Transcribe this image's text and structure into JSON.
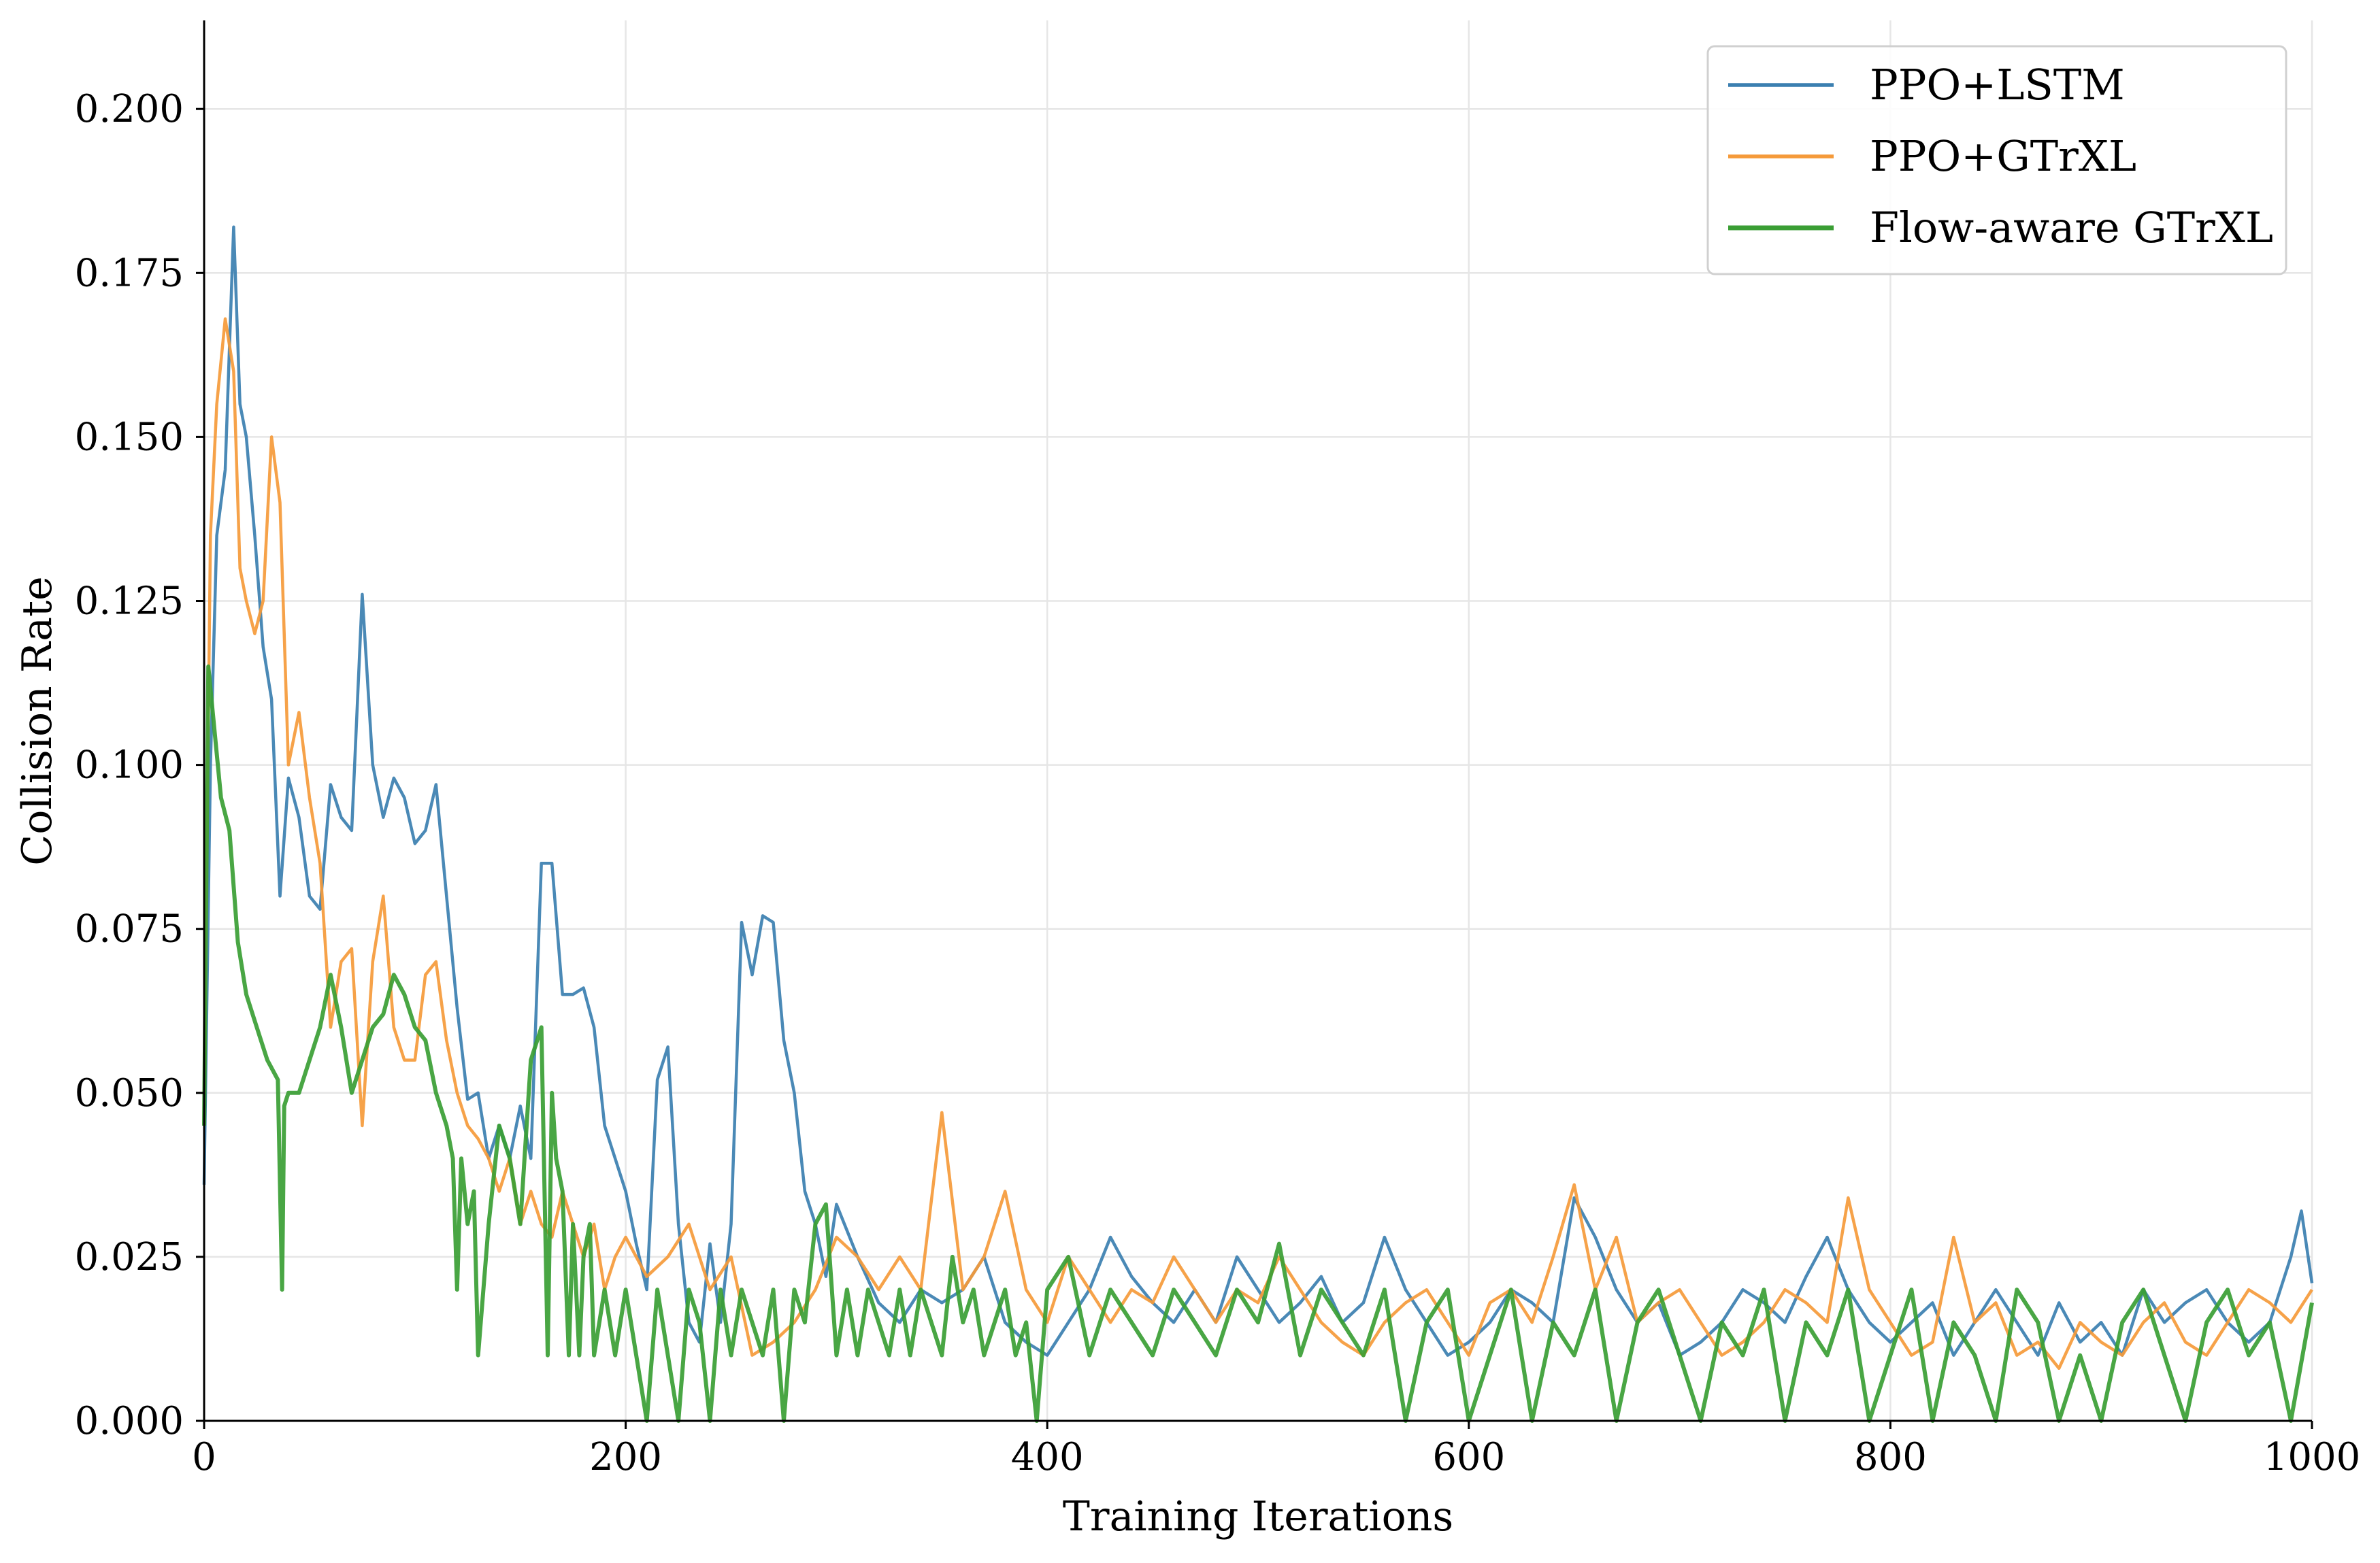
{
  "chart_data": {
    "type": "line",
    "title": "",
    "xlabel": "Training Iterations",
    "ylabel": "Collision Rate",
    "xlim": [
      0,
      1000
    ],
    "ylim": [
      0,
      0.2135
    ],
    "xticks": [
      0,
      200,
      400,
      600,
      800,
      1000
    ],
    "xtick_labels": [
      "0",
      "200",
      "400",
      "600",
      "800",
      "1000"
    ],
    "yticks": [
      0,
      0.025,
      0.05,
      0.075,
      0.1,
      0.125,
      0.15,
      0.175,
      0.2
    ],
    "ytick_labels": [
      "0.000",
      "0.025",
      "0.050",
      "0.075",
      "0.100",
      "0.125",
      "0.150",
      "0.175",
      "0.200"
    ],
    "grid": true,
    "legend_position": "top-right",
    "series": [
      {
        "name": "PPO+LSTM",
        "color": "#3b7fb0",
        "x": [
          0,
          3,
          6,
          10,
          14,
          17,
          20,
          24,
          28,
          32,
          36,
          40,
          45,
          50,
          55,
          60,
          65,
          70,
          75,
          80,
          85,
          90,
          95,
          100,
          105,
          110,
          115,
          120,
          125,
          130,
          135,
          140,
          145,
          150,
          155,
          160,
          165,
          170,
          175,
          180,
          185,
          190,
          195,
          200,
          205,
          210,
          215,
          220,
          225,
          230,
          235,
          240,
          245,
          250,
          255,
          260,
          265,
          270,
          275,
          280,
          285,
          290,
          295,
          300,
          310,
          320,
          330,
          340,
          350,
          360,
          370,
          380,
          390,
          400,
          410,
          420,
          430,
          440,
          450,
          460,
          470,
          480,
          490,
          500,
          510,
          520,
          530,
          540,
          550,
          560,
          570,
          580,
          590,
          600,
          610,
          620,
          630,
          640,
          650,
          660,
          670,
          680,
          690,
          700,
          710,
          720,
          730,
          740,
          750,
          760,
          770,
          780,
          790,
          800,
          810,
          820,
          830,
          840,
          850,
          860,
          870,
          880,
          890,
          900,
          910,
          920,
          930,
          940,
          950,
          960,
          970,
          980,
          990,
          995,
          1000
        ],
        "values": [
          0.036,
          0.1,
          0.135,
          0.145,
          0.182,
          0.155,
          0.15,
          0.135,
          0.118,
          0.11,
          0.08,
          0.098,
          0.092,
          0.08,
          0.078,
          0.097,
          0.092,
          0.09,
          0.126,
          0.1,
          0.092,
          0.098,
          0.095,
          0.088,
          0.09,
          0.097,
          0.08,
          0.063,
          0.049,
          0.05,
          0.04,
          0.045,
          0.04,
          0.048,
          0.04,
          0.085,
          0.085,
          0.065,
          0.065,
          0.066,
          0.06,
          0.045,
          0.04,
          0.035,
          0.027,
          0.02,
          0.052,
          0.057,
          0.03,
          0.015,
          0.012,
          0.027,
          0.015,
          0.03,
          0.076,
          0.068,
          0.077,
          0.076,
          0.058,
          0.05,
          0.035,
          0.03,
          0.022,
          0.033,
          0.025,
          0.018,
          0.015,
          0.02,
          0.018,
          0.02,
          0.025,
          0.015,
          0.012,
          0.01,
          0.015,
          0.02,
          0.028,
          0.022,
          0.018,
          0.015,
          0.02,
          0.015,
          0.025,
          0.02,
          0.015,
          0.018,
          0.022,
          0.015,
          0.018,
          0.028,
          0.02,
          0.015,
          0.01,
          0.012,
          0.015,
          0.02,
          0.018,
          0.015,
          0.034,
          0.028,
          0.02,
          0.015,
          0.018,
          0.01,
          0.012,
          0.015,
          0.02,
          0.018,
          0.015,
          0.022,
          0.028,
          0.02,
          0.015,
          0.012,
          0.015,
          0.018,
          0.01,
          0.015,
          0.02,
          0.015,
          0.01,
          0.018,
          0.012,
          0.015,
          0.01,
          0.02,
          0.015,
          0.018,
          0.02,
          0.015,
          0.012,
          0.015,
          0.025,
          0.032,
          0.021
        ]
      },
      {
        "name": "PPO+GTrXL",
        "color": "#f59a3a",
        "x": [
          0,
          3,
          6,
          10,
          14,
          17,
          20,
          24,
          28,
          32,
          36,
          40,
          45,
          50,
          55,
          60,
          65,
          70,
          75,
          80,
          85,
          90,
          95,
          100,
          105,
          110,
          115,
          120,
          125,
          130,
          135,
          140,
          145,
          150,
          155,
          160,
          165,
          170,
          175,
          180,
          185,
          190,
          195,
          200,
          210,
          220,
          230,
          240,
          250,
          260,
          270,
          280,
          290,
          300,
          310,
          320,
          330,
          340,
          350,
          360,
          370,
          380,
          390,
          400,
          410,
          420,
          430,
          440,
          450,
          460,
          470,
          480,
          490,
          500,
          510,
          520,
          530,
          540,
          550,
          560,
          570,
          580,
          590,
          600,
          610,
          620,
          630,
          640,
          650,
          660,
          670,
          680,
          690,
          700,
          710,
          720,
          730,
          740,
          750,
          760,
          770,
          780,
          790,
          800,
          810,
          820,
          830,
          840,
          850,
          860,
          870,
          880,
          890,
          900,
          910,
          920,
          930,
          940,
          950,
          960,
          970,
          980,
          990,
          1000
        ],
        "values": [
          0.05,
          0.135,
          0.155,
          0.168,
          0.16,
          0.13,
          0.125,
          0.12,
          0.125,
          0.15,
          0.14,
          0.1,
          0.108,
          0.095,
          0.085,
          0.06,
          0.07,
          0.072,
          0.045,
          0.07,
          0.08,
          0.06,
          0.055,
          0.055,
          0.068,
          0.07,
          0.058,
          0.05,
          0.045,
          0.043,
          0.04,
          0.035,
          0.04,
          0.03,
          0.035,
          0.03,
          0.028,
          0.035,
          0.03,
          0.025,
          0.03,
          0.02,
          0.025,
          0.028,
          0.022,
          0.025,
          0.03,
          0.02,
          0.025,
          0.01,
          0.012,
          0.015,
          0.02,
          0.028,
          0.025,
          0.02,
          0.025,
          0.02,
          0.047,
          0.02,
          0.025,
          0.035,
          0.02,
          0.015,
          0.025,
          0.02,
          0.015,
          0.02,
          0.018,
          0.025,
          0.02,
          0.015,
          0.02,
          0.018,
          0.025,
          0.02,
          0.015,
          0.012,
          0.01,
          0.015,
          0.018,
          0.02,
          0.015,
          0.01,
          0.018,
          0.02,
          0.015,
          0.025,
          0.036,
          0.02,
          0.028,
          0.015,
          0.018,
          0.02,
          0.015,
          0.01,
          0.012,
          0.015,
          0.02,
          0.018,
          0.015,
          0.034,
          0.02,
          0.015,
          0.01,
          0.012,
          0.028,
          0.015,
          0.018,
          0.01,
          0.012,
          0.008,
          0.015,
          0.012,
          0.01,
          0.015,
          0.018,
          0.012,
          0.01,
          0.015,
          0.02,
          0.018,
          0.015,
          0.02
        ]
      },
      {
        "name": "Flow-aware GTrXL",
        "color": "#3a9e34",
        "x": [
          0,
          2,
          5,
          8,
          12,
          16,
          20,
          25,
          30,
          35,
          37,
          38,
          40,
          45,
          50,
          55,
          60,
          65,
          70,
          75,
          80,
          85,
          90,
          95,
          100,
          105,
          110,
          115,
          118,
          120,
          122,
          125,
          128,
          130,
          135,
          140,
          145,
          150,
          155,
          160,
          163,
          165,
          167,
          170,
          173,
          175,
          178,
          180,
          183,
          185,
          190,
          195,
          200,
          205,
          210,
          215,
          220,
          225,
          230,
          235,
          240,
          245,
          250,
          255,
          260,
          265,
          270,
          275,
          280,
          285,
          290,
          295,
          300,
          305,
          310,
          315,
          320,
          325,
          330,
          335,
          340,
          345,
          350,
          355,
          360,
          365,
          370,
          375,
          380,
          385,
          390,
          395,
          400,
          410,
          420,
          430,
          440,
          450,
          460,
          470,
          480,
          490,
          500,
          510,
          520,
          530,
          540,
          550,
          560,
          570,
          580,
          590,
          600,
          610,
          620,
          630,
          640,
          650,
          660,
          670,
          680,
          690,
          700,
          710,
          720,
          730,
          740,
          750,
          760,
          770,
          780,
          790,
          800,
          810,
          820,
          830,
          840,
          850,
          860,
          870,
          880,
          890,
          900,
          910,
          920,
          930,
          940,
          950,
          960,
          970,
          980,
          990,
          1000
        ],
        "values": [
          0.045,
          0.115,
          0.105,
          0.095,
          0.09,
          0.073,
          0.065,
          0.06,
          0.055,
          0.052,
          0.02,
          0.048,
          0.05,
          0.05,
          0.055,
          0.06,
          0.068,
          0.06,
          0.05,
          0.055,
          0.06,
          0.062,
          0.068,
          0.065,
          0.06,
          0.058,
          0.05,
          0.045,
          0.04,
          0.02,
          0.04,
          0.03,
          0.035,
          0.01,
          0.03,
          0.045,
          0.04,
          0.03,
          0.055,
          0.06,
          0.01,
          0.05,
          0.04,
          0.035,
          0.01,
          0.03,
          0.01,
          0.025,
          0.03,
          0.01,
          0.02,
          0.01,
          0.02,
          0.01,
          0.0,
          0.02,
          0.01,
          0.0,
          0.02,
          0.015,
          0.0,
          0.02,
          0.01,
          0.02,
          0.015,
          0.01,
          0.02,
          0.0,
          0.02,
          0.015,
          0.03,
          0.033,
          0.01,
          0.02,
          0.01,
          0.02,
          0.015,
          0.01,
          0.02,
          0.01,
          0.02,
          0.015,
          0.01,
          0.025,
          0.015,
          0.02,
          0.01,
          0.015,
          0.02,
          0.01,
          0.015,
          0.0,
          0.02,
          0.025,
          0.01,
          0.02,
          0.015,
          0.01,
          0.02,
          0.015,
          0.01,
          0.02,
          0.015,
          0.027,
          0.01,
          0.02,
          0.015,
          0.01,
          0.02,
          0.0,
          0.015,
          0.02,
          0.0,
          0.01,
          0.02,
          0.0,
          0.015,
          0.01,
          0.02,
          0.0,
          0.015,
          0.02,
          0.01,
          0.0,
          0.015,
          0.01,
          0.02,
          0.0,
          0.015,
          0.01,
          0.02,
          0.0,
          0.01,
          0.02,
          0.0,
          0.015,
          0.01,
          0.0,
          0.02,
          0.015,
          0.0,
          0.01,
          0.0,
          0.015,
          0.02,
          0.01,
          0.0,
          0.015,
          0.02,
          0.01,
          0.015,
          0.0,
          0.018
        ]
      }
    ]
  }
}
